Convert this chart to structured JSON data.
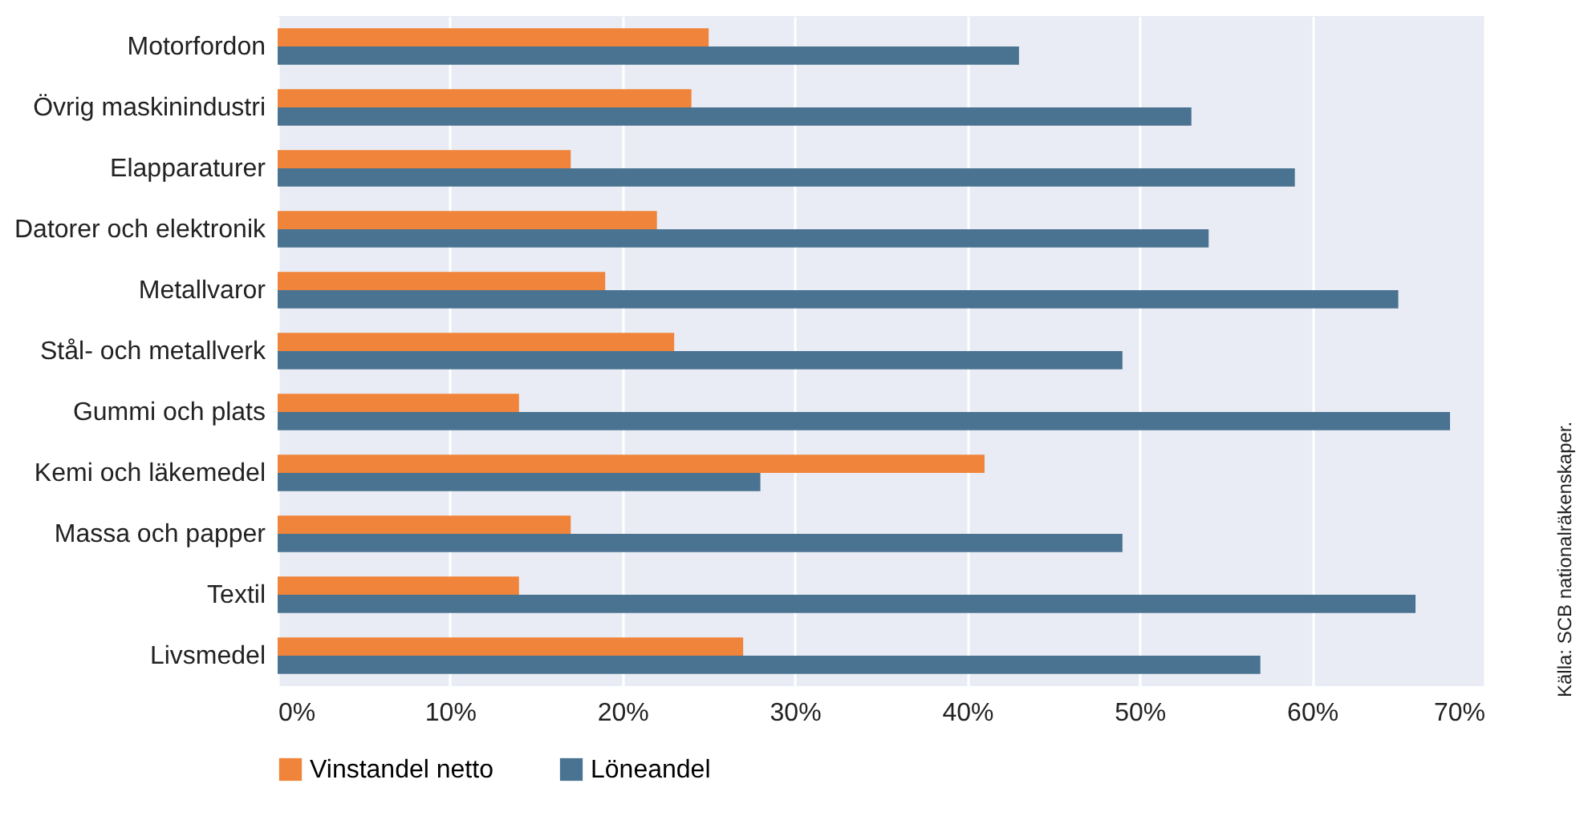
{
  "chart_data": {
    "type": "bar",
    "orientation": "horizontal",
    "categories": [
      "Motorfordon",
      "Övrig maskinindustri",
      "Elapparaturer",
      "Datorer och elektronik",
      "Metallvaror",
      "Stål- och metallverk",
      "Gummi och plats",
      "Kemi och läkemedel",
      "Massa och papper",
      "Textil",
      "Livsmedel"
    ],
    "series": [
      {
        "name": "Vinstandel netto",
        "color": "#f0843a",
        "values": [
          25,
          24,
          17,
          22,
          19,
          23,
          14,
          41,
          17,
          14,
          27
        ]
      },
      {
        "name": "Löneandel",
        "color": "#4a7391",
        "values": [
          43,
          53,
          59,
          54,
          65,
          49,
          68,
          28,
          49,
          66,
          57
        ]
      }
    ],
    "xlim": [
      0,
      70
    ],
    "xticks": [
      {
        "value": 0,
        "label": "0%"
      },
      {
        "value": 10,
        "label": "10%"
      },
      {
        "value": 20,
        "label": "20%"
      },
      {
        "value": 30,
        "label": "30%"
      },
      {
        "value": 40,
        "label": "40%"
      },
      {
        "value": 50,
        "label": "50%"
      },
      {
        "value": 60,
        "label": "60%"
      },
      {
        "value": 70,
        "label": "70%"
      }
    ],
    "grid": "x",
    "legend": "bottom",
    "annotations": [
      "Källa: SCB nationalräkenskaper."
    ]
  }
}
